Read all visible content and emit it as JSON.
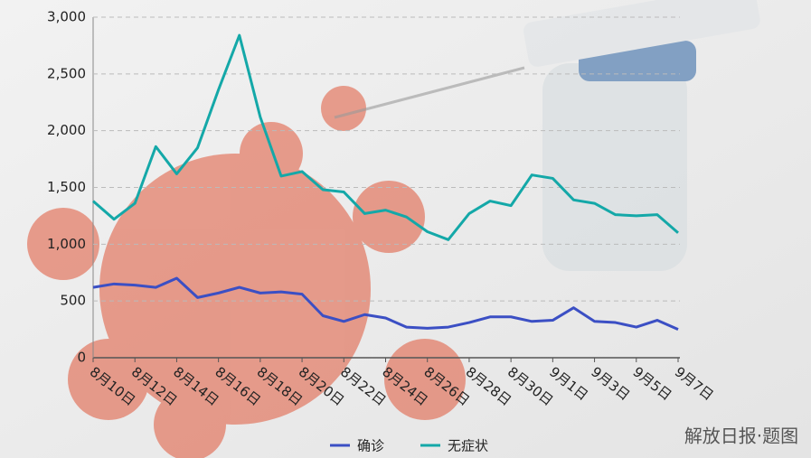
{
  "chart_data": {
    "type": "line",
    "categories": [
      "8月10日",
      null,
      "8月12日",
      null,
      "8月14日",
      null,
      "8月16日",
      null,
      "8月18日",
      null,
      "8月20日",
      null,
      "8月22日",
      null,
      "8月24日",
      null,
      "8月26日",
      null,
      "8月28日",
      null,
      "8月30日",
      null,
      "9月1日",
      null,
      "9月3日",
      null,
      "9月5日",
      null,
      "9月7日"
    ],
    "series": [
      {
        "name": "确诊",
        "color": "#3b4fc4",
        "values": [
          620,
          650,
          640,
          620,
          700,
          530,
          570,
          620,
          570,
          580,
          560,
          370,
          320,
          380,
          350,
          270,
          260,
          270,
          310,
          360,
          360,
          320,
          330,
          440,
          320,
          310,
          270,
          330,
          250
        ]
      },
      {
        "name": "无症状",
        "color": "#14a8a8",
        "values": [
          1380,
          1220,
          1360,
          1860,
          1620,
          1850,
          2360,
          2840,
          2120,
          1600,
          1640,
          1480,
          1460,
          1270,
          1300,
          1240,
          1110,
          1040,
          1270,
          1380,
          1340,
          1610,
          1580,
          1390,
          1360,
          1260,
          1250,
          1260,
          1100
        ]
      }
    ],
    "ylim": [
      0,
      3000
    ],
    "yticks": [
      {
        "value": 0,
        "label": "0"
      },
      {
        "value": 500,
        "label": "500"
      },
      {
        "value": 1000,
        "label": "1,000"
      },
      {
        "value": 1500,
        "label": "1,500"
      },
      {
        "value": 2000,
        "label": "2,000"
      },
      {
        "value": 2500,
        "label": "2,500"
      },
      {
        "value": 3000,
        "label": "3,000"
      }
    ],
    "grid": true,
    "legend": "bottom",
    "watermark": "解放日报·题图"
  }
}
